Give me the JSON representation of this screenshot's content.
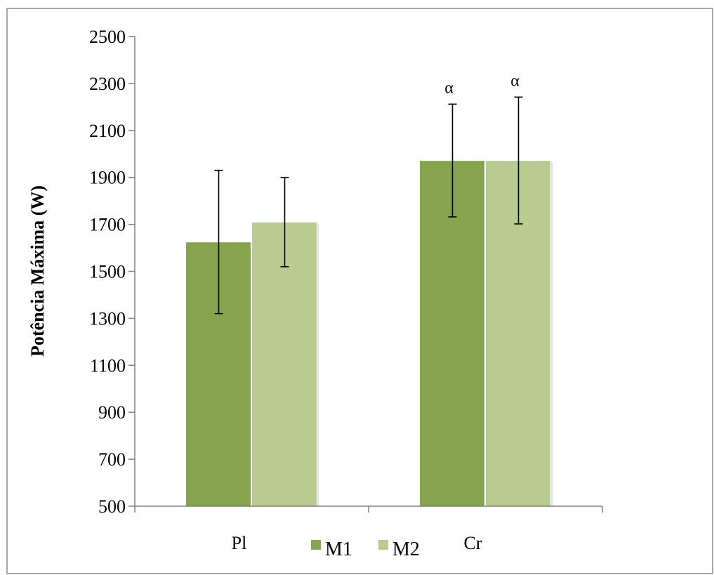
{
  "chart_data": {
    "type": "bar",
    "title": "",
    "xlabel": "",
    "ylabel": "Potência Máxima (W)",
    "ylim": [
      500,
      2500
    ],
    "yticks": [
      500,
      700,
      900,
      1100,
      1300,
      1500,
      1700,
      1900,
      2100,
      2300,
      2500
    ],
    "categories": [
      "Pl",
      "Cr"
    ],
    "series": [
      {
        "name": "M1",
        "color": "#86a34e",
        "values": [
          1625,
          1972
        ],
        "errors": [
          305,
          240
        ],
        "annotations": [
          "",
          "α"
        ]
      },
      {
        "name": "M2",
        "color": "#b8cc92",
        "values": [
          1710,
          1972
        ],
        "errors": [
          190,
          270
        ],
        "annotations": [
          "",
          "α"
        ]
      }
    ],
    "grid": false,
    "legend_position": "bottom"
  }
}
